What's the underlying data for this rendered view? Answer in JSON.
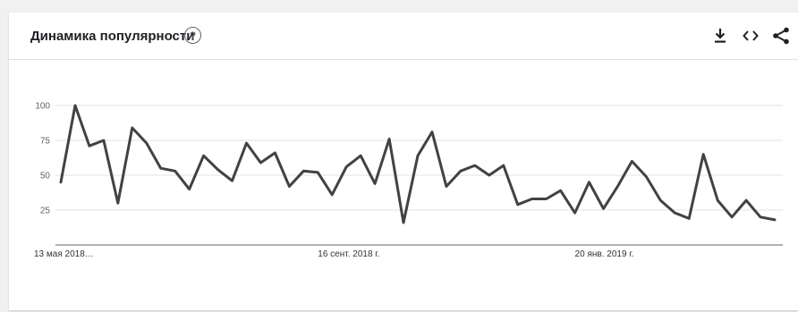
{
  "header": {
    "title": "Динамика популярности",
    "help_icon": "help-circle-icon",
    "tools": [
      "download-icon",
      "embed-code-icon",
      "share-icon"
    ]
  },
  "chart_data": {
    "type": "line",
    "title": "Динамика популярности",
    "xlabel": "",
    "ylabel": "",
    "ylim": [
      0,
      100
    ],
    "yticks": [
      25,
      50,
      75,
      100
    ],
    "grid": true,
    "x_tick_labels": [
      {
        "label": "13 мая 2018…",
        "index": 0
      },
      {
        "label": "16 сент. 2018 г.",
        "index": 18
      },
      {
        "label": "20 янв. 2019 г.",
        "index": 36
      }
    ],
    "x_unit": "week",
    "x_start": "13 мая 2018",
    "line_color": "#424242",
    "series": [
      {
        "values": [
          45,
          100,
          71,
          75,
          30,
          84,
          73,
          55,
          53,
          40,
          64,
          54,
          46,
          73,
          59,
          66,
          42,
          53,
          52,
          36,
          56,
          64,
          44,
          76,
          16,
          64,
          81,
          42,
          53,
          57,
          50,
          57,
          29,
          33,
          33,
          39,
          23,
          45,
          26,
          42,
          60,
          49,
          32,
          23,
          19,
          65,
          32,
          20,
          32,
          20,
          18
        ]
      }
    ]
  }
}
